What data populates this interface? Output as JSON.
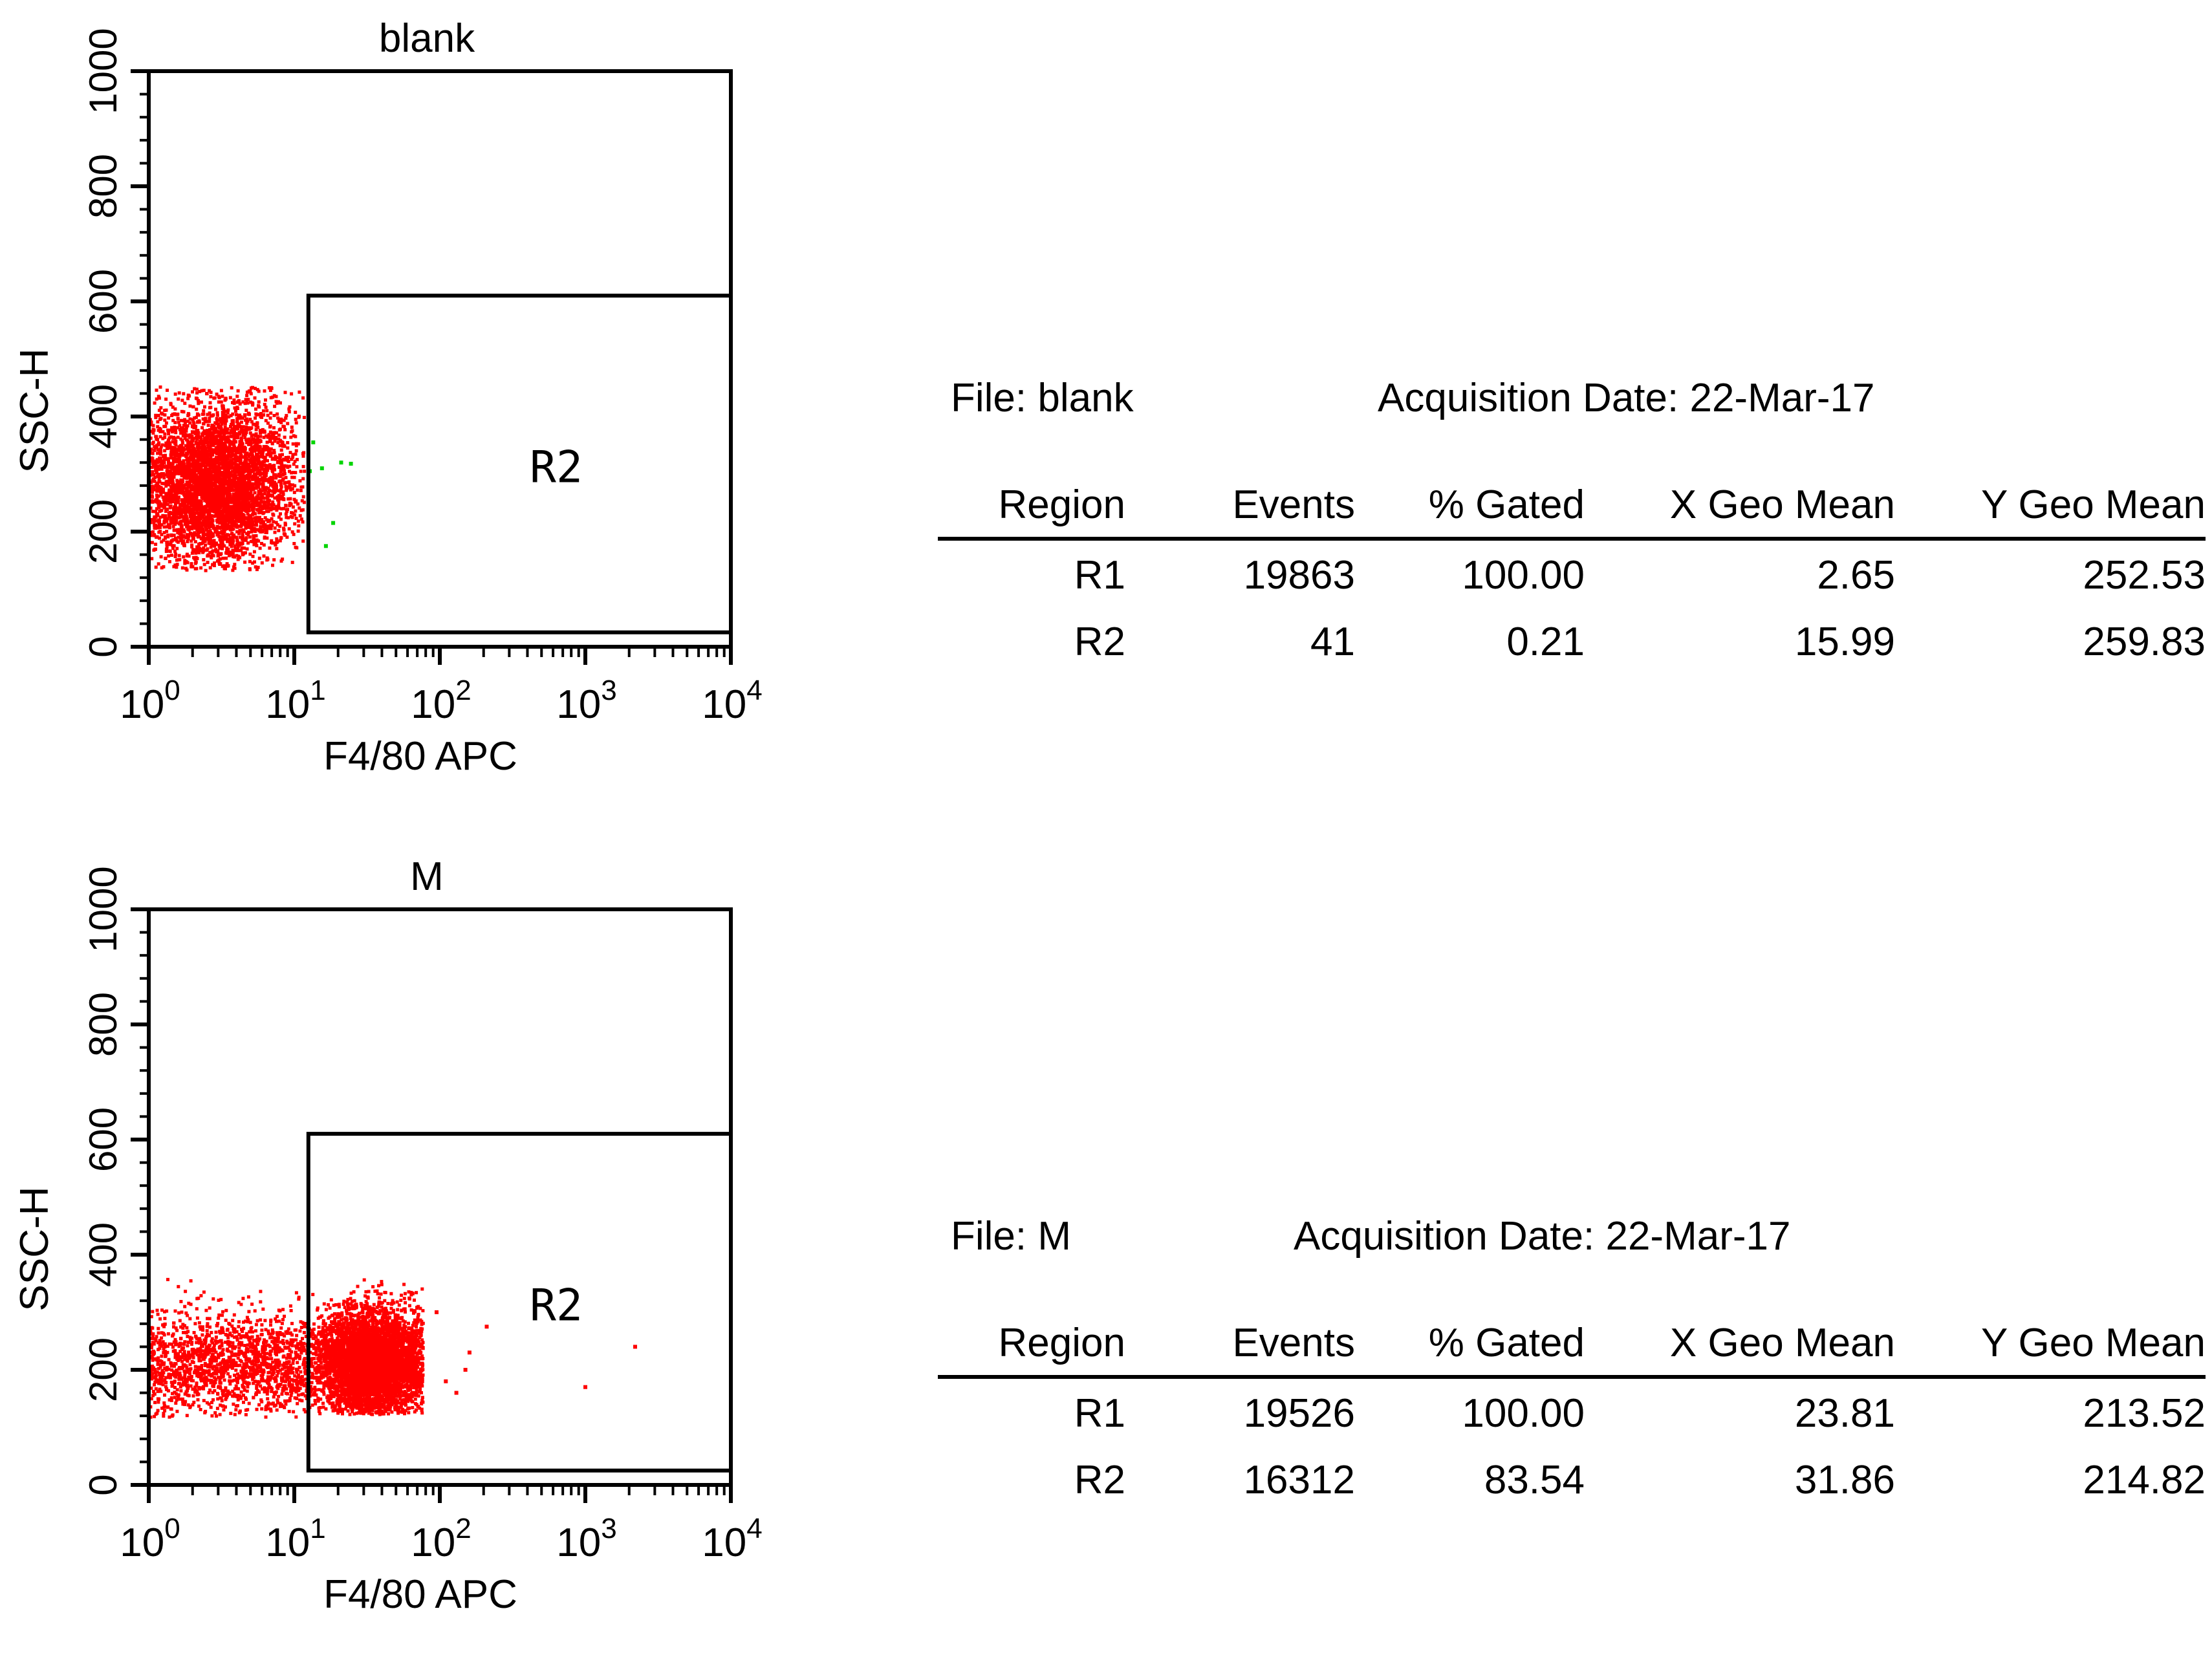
{
  "colors": {
    "gated_events": "#ff0000",
    "outlier_events": "#00d400",
    "axis": "#000000"
  },
  "chart_data": [
    {
      "type": "scatter",
      "title": "blank",
      "xlabel": "F4/80 APC",
      "ylabel": "SSC-H",
      "x_scale": "log",
      "xlim": [
        1,
        10000
      ],
      "ylim": [
        0,
        1000
      ],
      "x_ticks": [
        {
          "base": "10",
          "exp": "0"
        },
        {
          "base": "10",
          "exp": "1"
        },
        {
          "base": "10",
          "exp": "2"
        },
        {
          "base": "10",
          "exp": "3"
        },
        {
          "base": "10",
          "exp": "4"
        }
      ],
      "y_ticks": [
        "0",
        "200",
        "400",
        "600",
        "800",
        "1000"
      ],
      "y_tick_values": [
        0,
        200,
        400,
        600,
        800,
        1000
      ],
      "region": {
        "name": "R2",
        "x_range": [
          12.5,
          10000
        ],
        "y_range": [
          25,
          610
        ]
      },
      "populations": [
        {
          "color": "#ff0000",
          "count": 5000,
          "x_range": [
            1,
            11.5
          ],
          "y_range": [
            135,
            455
          ],
          "x_center": 2.8,
          "y_center": 285,
          "shape": "box"
        }
      ],
      "outliers": [
        {
          "x": 12.8,
          "y": 305
        },
        {
          "x": 15.5,
          "y": 310
        },
        {
          "x": 21.0,
          "y": 320
        },
        {
          "x": 24.5,
          "y": 318
        },
        {
          "x": 18.5,
          "y": 215
        },
        {
          "x": 16.5,
          "y": 175
        },
        {
          "x": 13.5,
          "y": 355
        }
      ],
      "stats": {
        "file_label": "File: blank",
        "acquisition": "Acquisition Date: 22-Mar-17",
        "headers": [
          "Region",
          "Events",
          "% Gated",
          "X Geo Mean",
          "Y Geo Mean"
        ],
        "rows": [
          [
            "R1",
            "19863",
            "100.00",
            "2.65",
            "252.53"
          ],
          [
            "R2",
            "41",
            "0.21",
            "15.99",
            "259.83"
          ]
        ]
      }
    },
    {
      "type": "scatter",
      "title": "M",
      "xlabel": "F4/80 APC",
      "ylabel": "SSC-H",
      "x_scale": "log",
      "xlim": [
        1,
        10000
      ],
      "ylim": [
        0,
        1000
      ],
      "x_ticks": [
        {
          "base": "10",
          "exp": "0"
        },
        {
          "base": "10",
          "exp": "1"
        },
        {
          "base": "10",
          "exp": "2"
        },
        {
          "base": "10",
          "exp": "3"
        },
        {
          "base": "10",
          "exp": "4"
        }
      ],
      "y_ticks": [
        "0",
        "200",
        "400",
        "600",
        "800",
        "1000"
      ],
      "y_tick_values": [
        0,
        200,
        400,
        600,
        800,
        1000
      ],
      "region": {
        "name": "R2",
        "x_range": [
          12.5,
          10000
        ],
        "y_range": [
          25,
          610
        ]
      },
      "populations": [
        {
          "color": "#ff0000",
          "count": 5200,
          "x_range": [
            12,
            75
          ],
          "y_range": [
            125,
            360
          ],
          "x_center": 33,
          "y_center": 215,
          "shape": "ellipse"
        },
        {
          "color": "#ff0000",
          "count": 1600,
          "x_range": [
            1,
            12
          ],
          "y_range": [
            120,
            360
          ],
          "x_center": 5,
          "y_center": 210,
          "shape": "sparse"
        }
      ],
      "outliers": [
        {
          "x": 110,
          "y": 180
        },
        {
          "x": 150,
          "y": 200
        },
        {
          "x": 210,
          "y": 275
        },
        {
          "x": 2200,
          "y": 240
        },
        {
          "x": 1000,
          "y": 170
        },
        {
          "x": 160,
          "y": 230
        },
        {
          "x": 130,
          "y": 160
        },
        {
          "x": 95,
          "y": 300
        }
      ],
      "stats": {
        "file_label": "File: M",
        "acquisition": "Acquisition Date: 22-Mar-17",
        "headers": [
          "Region",
          "Events",
          "% Gated",
          "X Geo Mean",
          "Y Geo Mean"
        ],
        "rows": [
          [
            "R1",
            "19526",
            "100.00",
            "23.81",
            "213.52"
          ],
          [
            "R2",
            "16312",
            "83.54",
            "31.86",
            "214.82"
          ]
        ]
      }
    }
  ]
}
